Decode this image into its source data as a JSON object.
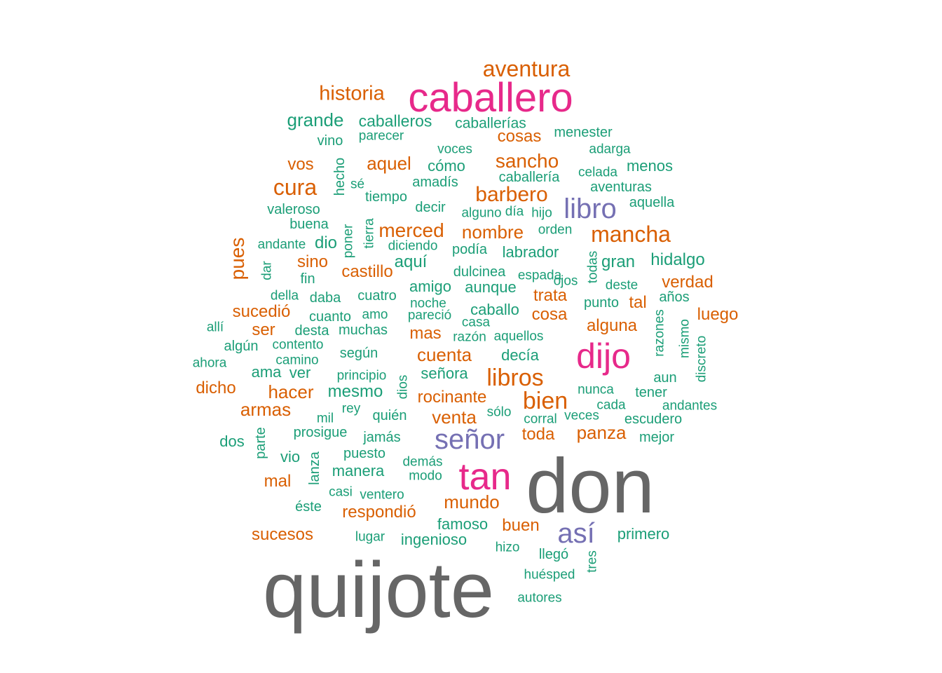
{
  "palette": {
    "gray": "#666666",
    "pink": "#e7298a",
    "purple": "#7570b3",
    "orange": "#d95f02",
    "teal": "#1b9e77"
  },
  "words": [
    {
      "text": "quijote",
      "color": "gray",
      "vertical": false
    },
    {
      "text": "don",
      "color": "gray",
      "vertical": false
    },
    {
      "text": "caballero",
      "color": "pink",
      "vertical": false
    },
    {
      "text": "dijo",
      "color": "pink",
      "vertical": false
    },
    {
      "text": "tan",
      "color": "pink",
      "vertical": false
    },
    {
      "text": "libro",
      "color": "purple",
      "vertical": false
    },
    {
      "text": "señor",
      "color": "purple",
      "vertical": false
    },
    {
      "text": "así",
      "color": "purple",
      "vertical": false
    },
    {
      "text": "aventura",
      "color": "orange",
      "vertical": false
    },
    {
      "text": "historia",
      "color": "orange",
      "vertical": false
    },
    {
      "text": "mancha",
      "color": "orange",
      "vertical": false
    },
    {
      "text": "barbero",
      "color": "orange",
      "vertical": false
    },
    {
      "text": "sancho",
      "color": "orange",
      "vertical": false
    },
    {
      "text": "cura",
      "color": "orange",
      "vertical": false
    },
    {
      "text": "libros",
      "color": "orange",
      "vertical": false
    },
    {
      "text": "bien",
      "color": "orange",
      "vertical": false
    },
    {
      "text": "pues",
      "color": "orange",
      "vertical": true
    },
    {
      "text": "merced",
      "color": "orange",
      "vertical": false
    },
    {
      "text": "nombre",
      "color": "orange",
      "vertical": false
    },
    {
      "text": "aquel",
      "color": "orange",
      "vertical": false
    },
    {
      "text": "cosas",
      "color": "orange",
      "vertical": false
    },
    {
      "text": "vos",
      "color": "orange",
      "vertical": false
    },
    {
      "text": "cuenta",
      "color": "orange",
      "vertical": false
    },
    {
      "text": "venta",
      "color": "orange",
      "vertical": false
    },
    {
      "text": "armas",
      "color": "orange",
      "vertical": false
    },
    {
      "text": "hacer",
      "color": "orange",
      "vertical": false
    },
    {
      "text": "panza",
      "color": "orange",
      "vertical": false
    },
    {
      "text": "mundo",
      "color": "orange",
      "vertical": false
    },
    {
      "text": "luego",
      "color": "orange",
      "vertical": false
    },
    {
      "text": "alguna",
      "color": "orange",
      "vertical": false
    },
    {
      "text": "castillo",
      "color": "orange",
      "vertical": false
    },
    {
      "text": "rocinante",
      "color": "orange",
      "vertical": false
    },
    {
      "text": "respondió",
      "color": "orange",
      "vertical": false
    },
    {
      "text": "buen",
      "color": "orange",
      "vertical": false
    },
    {
      "text": "trata",
      "color": "orange",
      "vertical": false
    },
    {
      "text": "cosa",
      "color": "orange",
      "vertical": false
    },
    {
      "text": "toda",
      "color": "orange",
      "vertical": false
    },
    {
      "text": "verdad",
      "color": "orange",
      "vertical": false
    },
    {
      "text": "dicho",
      "color": "orange",
      "vertical": false
    },
    {
      "text": "sucedió",
      "color": "orange",
      "vertical": false
    },
    {
      "text": "sucesos",
      "color": "orange",
      "vertical": false
    },
    {
      "text": "sino",
      "color": "orange",
      "vertical": false
    },
    {
      "text": "mas",
      "color": "orange",
      "vertical": false
    },
    {
      "text": "ser",
      "color": "orange",
      "vertical": false
    },
    {
      "text": "mal",
      "color": "orange",
      "vertical": false
    },
    {
      "text": "tal",
      "color": "orange",
      "vertical": false
    },
    {
      "text": "grande",
      "color": "teal",
      "vertical": false
    },
    {
      "text": "caballeros",
      "color": "teal",
      "vertical": false
    },
    {
      "text": "caballerías",
      "color": "teal",
      "vertical": false
    },
    {
      "text": "menester",
      "color": "teal",
      "vertical": false
    },
    {
      "text": "vino",
      "color": "teal",
      "vertical": false
    },
    {
      "text": "parecer",
      "color": "teal",
      "vertical": false
    },
    {
      "text": "voces",
      "color": "teal",
      "vertical": false
    },
    {
      "text": "adarga",
      "color": "teal",
      "vertical": false
    },
    {
      "text": "hecho",
      "color": "teal",
      "vertical": true
    },
    {
      "text": "cómo",
      "color": "teal",
      "vertical": false
    },
    {
      "text": "celada",
      "color": "teal",
      "vertical": false
    },
    {
      "text": "menos",
      "color": "teal",
      "vertical": false
    },
    {
      "text": "sé",
      "color": "teal",
      "vertical": false
    },
    {
      "text": "amadís",
      "color": "teal",
      "vertical": false
    },
    {
      "text": "caballería",
      "color": "teal",
      "vertical": false
    },
    {
      "text": "aventuras",
      "color": "teal",
      "vertical": false
    },
    {
      "text": "tiempo",
      "color": "teal",
      "vertical": false
    },
    {
      "text": "aquella",
      "color": "teal",
      "vertical": false
    },
    {
      "text": "valeroso",
      "color": "teal",
      "vertical": false
    },
    {
      "text": "decir",
      "color": "teal",
      "vertical": false
    },
    {
      "text": "alguno",
      "color": "teal",
      "vertical": false
    },
    {
      "text": "día",
      "color": "teal",
      "vertical": false
    },
    {
      "text": "hijo",
      "color": "teal",
      "vertical": false
    },
    {
      "text": "buena",
      "color": "teal",
      "vertical": false
    },
    {
      "text": "poner",
      "color": "teal",
      "vertical": true
    },
    {
      "text": "tierra",
      "color": "teal",
      "vertical": true
    },
    {
      "text": "orden",
      "color": "teal",
      "vertical": false
    },
    {
      "text": "andante",
      "color": "teal",
      "vertical": false
    },
    {
      "text": "dio",
      "color": "teal",
      "vertical": false
    },
    {
      "text": "diciendo",
      "color": "teal",
      "vertical": false
    },
    {
      "text": "podía",
      "color": "teal",
      "vertical": false
    },
    {
      "text": "labrador",
      "color": "teal",
      "vertical": false
    },
    {
      "text": "todas",
      "color": "teal",
      "vertical": true
    },
    {
      "text": "gran",
      "color": "teal",
      "vertical": false
    },
    {
      "text": "hidalgo",
      "color": "teal",
      "vertical": false
    },
    {
      "text": "dar",
      "color": "teal",
      "vertical": true
    },
    {
      "text": "aquí",
      "color": "teal",
      "vertical": false
    },
    {
      "text": "dulcinea",
      "color": "teal",
      "vertical": false
    },
    {
      "text": "espada",
      "color": "teal",
      "vertical": false
    },
    {
      "text": "ojos",
      "color": "teal",
      "vertical": false
    },
    {
      "text": "fin",
      "color": "teal",
      "vertical": false
    },
    {
      "text": "della",
      "color": "teal",
      "vertical": false
    },
    {
      "text": "daba",
      "color": "teal",
      "vertical": false
    },
    {
      "text": "cuatro",
      "color": "teal",
      "vertical": false
    },
    {
      "text": "amigo",
      "color": "teal",
      "vertical": false
    },
    {
      "text": "aunque",
      "color": "teal",
      "vertical": false
    },
    {
      "text": "deste",
      "color": "teal",
      "vertical": false
    },
    {
      "text": "noche",
      "color": "teal",
      "vertical": false
    },
    {
      "text": "punto",
      "color": "teal",
      "vertical": false
    },
    {
      "text": "años",
      "color": "teal",
      "vertical": false
    },
    {
      "text": "cuanto",
      "color": "teal",
      "vertical": false
    },
    {
      "text": "amo",
      "color": "teal",
      "vertical": false
    },
    {
      "text": "pareció",
      "color": "teal",
      "vertical": false
    },
    {
      "text": "caballo",
      "color": "teal",
      "vertical": false
    },
    {
      "text": "razones",
      "color": "teal",
      "vertical": true
    },
    {
      "text": "allí",
      "color": "teal",
      "vertical": false
    },
    {
      "text": "desta",
      "color": "teal",
      "vertical": false
    },
    {
      "text": "muchas",
      "color": "teal",
      "vertical": false
    },
    {
      "text": "casa",
      "color": "teal",
      "vertical": false
    },
    {
      "text": "mismo",
      "color": "teal",
      "vertical": true
    },
    {
      "text": "razón",
      "color": "teal",
      "vertical": false
    },
    {
      "text": "aquellos",
      "color": "teal",
      "vertical": false
    },
    {
      "text": "algún",
      "color": "teal",
      "vertical": false
    },
    {
      "text": "contento",
      "color": "teal",
      "vertical": false
    },
    {
      "text": "según",
      "color": "teal",
      "vertical": false
    },
    {
      "text": "decía",
      "color": "teal",
      "vertical": false
    },
    {
      "text": "discreto",
      "color": "teal",
      "vertical": true
    },
    {
      "text": "ahora",
      "color": "teal",
      "vertical": false
    },
    {
      "text": "camino",
      "color": "teal",
      "vertical": false
    },
    {
      "text": "ama",
      "color": "teal",
      "vertical": false
    },
    {
      "text": "ver",
      "color": "teal",
      "vertical": false
    },
    {
      "text": "principio",
      "color": "teal",
      "vertical": false
    },
    {
      "text": "dios",
      "color": "teal",
      "vertical": true
    },
    {
      "text": "señora",
      "color": "teal",
      "vertical": false
    },
    {
      "text": "aun",
      "color": "teal",
      "vertical": false
    },
    {
      "text": "mesmo",
      "color": "teal",
      "vertical": false
    },
    {
      "text": "nunca",
      "color": "teal",
      "vertical": false
    },
    {
      "text": "tener",
      "color": "teal",
      "vertical": false
    },
    {
      "text": "cada",
      "color": "teal",
      "vertical": false
    },
    {
      "text": "andantes",
      "color": "teal",
      "vertical": false
    },
    {
      "text": "rey",
      "color": "teal",
      "vertical": false
    },
    {
      "text": "quién",
      "color": "teal",
      "vertical": false
    },
    {
      "text": "sólo",
      "color": "teal",
      "vertical": false
    },
    {
      "text": "mil",
      "color": "teal",
      "vertical": false
    },
    {
      "text": "corral",
      "color": "teal",
      "vertical": false
    },
    {
      "text": "veces",
      "color": "teal",
      "vertical": false
    },
    {
      "text": "escudero",
      "color": "teal",
      "vertical": false
    },
    {
      "text": "prosigue",
      "color": "teal",
      "vertical": false
    },
    {
      "text": "parte",
      "color": "teal",
      "vertical": true
    },
    {
      "text": "dos",
      "color": "teal",
      "vertical": false
    },
    {
      "text": "jamás",
      "color": "teal",
      "vertical": false
    },
    {
      "text": "mejor",
      "color": "teal",
      "vertical": false
    },
    {
      "text": "lanza",
      "color": "teal",
      "vertical": true
    },
    {
      "text": "vio",
      "color": "teal",
      "vertical": false
    },
    {
      "text": "puesto",
      "color": "teal",
      "vertical": false
    },
    {
      "text": "demás",
      "color": "teal",
      "vertical": false
    },
    {
      "text": "manera",
      "color": "teal",
      "vertical": false
    },
    {
      "text": "modo",
      "color": "teal",
      "vertical": false
    },
    {
      "text": "casi",
      "color": "teal",
      "vertical": false
    },
    {
      "text": "ventero",
      "color": "teal",
      "vertical": false
    },
    {
      "text": "éste",
      "color": "teal",
      "vertical": false
    },
    {
      "text": "famoso",
      "color": "teal",
      "vertical": false
    },
    {
      "text": "primero",
      "color": "teal",
      "vertical": false
    },
    {
      "text": "lugar",
      "color": "teal",
      "vertical": false
    },
    {
      "text": "ingenioso",
      "color": "teal",
      "vertical": false
    },
    {
      "text": "hizo",
      "color": "teal",
      "vertical": false
    },
    {
      "text": "llegó",
      "color": "teal",
      "vertical": false
    },
    {
      "text": "tres",
      "color": "teal",
      "vertical": true
    },
    {
      "text": "huésped",
      "color": "teal",
      "vertical": false
    },
    {
      "text": "autores",
      "color": "teal",
      "vertical": false
    }
  ]
}
